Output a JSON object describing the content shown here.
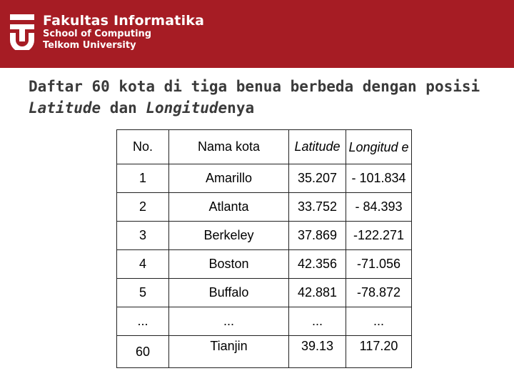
{
  "header": {
    "brand_line1": "Fakultas Informatika",
    "brand_line2": "School of Computing",
    "brand_line3": "Telkom University",
    "logo_icon": "telkom-university-logo"
  },
  "title": {
    "prefix": "Daftar 60 kota di tiga benua berbeda dengan posisi ",
    "latitude": "Latitude",
    "connector": " dan ",
    "longitude": "Longitude",
    "suffix": "nya"
  },
  "table": {
    "columns": [
      "No.",
      "Nama kota",
      "Latitude",
      "Longitud e"
    ],
    "rows": [
      {
        "no": "1",
        "city": "Amarillo",
        "lat": "35.207",
        "lon": "- 101.834"
      },
      {
        "no": "2",
        "city": "Atlanta",
        "lat": "33.752",
        "lon": "- 84.393"
      },
      {
        "no": "3",
        "city": "Berkeley",
        "lat": "37.869",
        "lon": "-122.271"
      },
      {
        "no": "4",
        "city": "Boston",
        "lat": "42.356",
        "lon": "-71.056"
      },
      {
        "no": "5",
        "city": "Buffalo",
        "lat": "42.881",
        "lon": "-78.872"
      },
      {
        "no": "...",
        "city": "...",
        "lat": "...",
        "lon": "..."
      },
      {
        "no": "60",
        "city": "Tianjin",
        "lat": "39.13",
        "lon": "117.20"
      }
    ]
  },
  "colors": {
    "header_bg": "#a61c24",
    "title_text": "#3a3a3a"
  }
}
